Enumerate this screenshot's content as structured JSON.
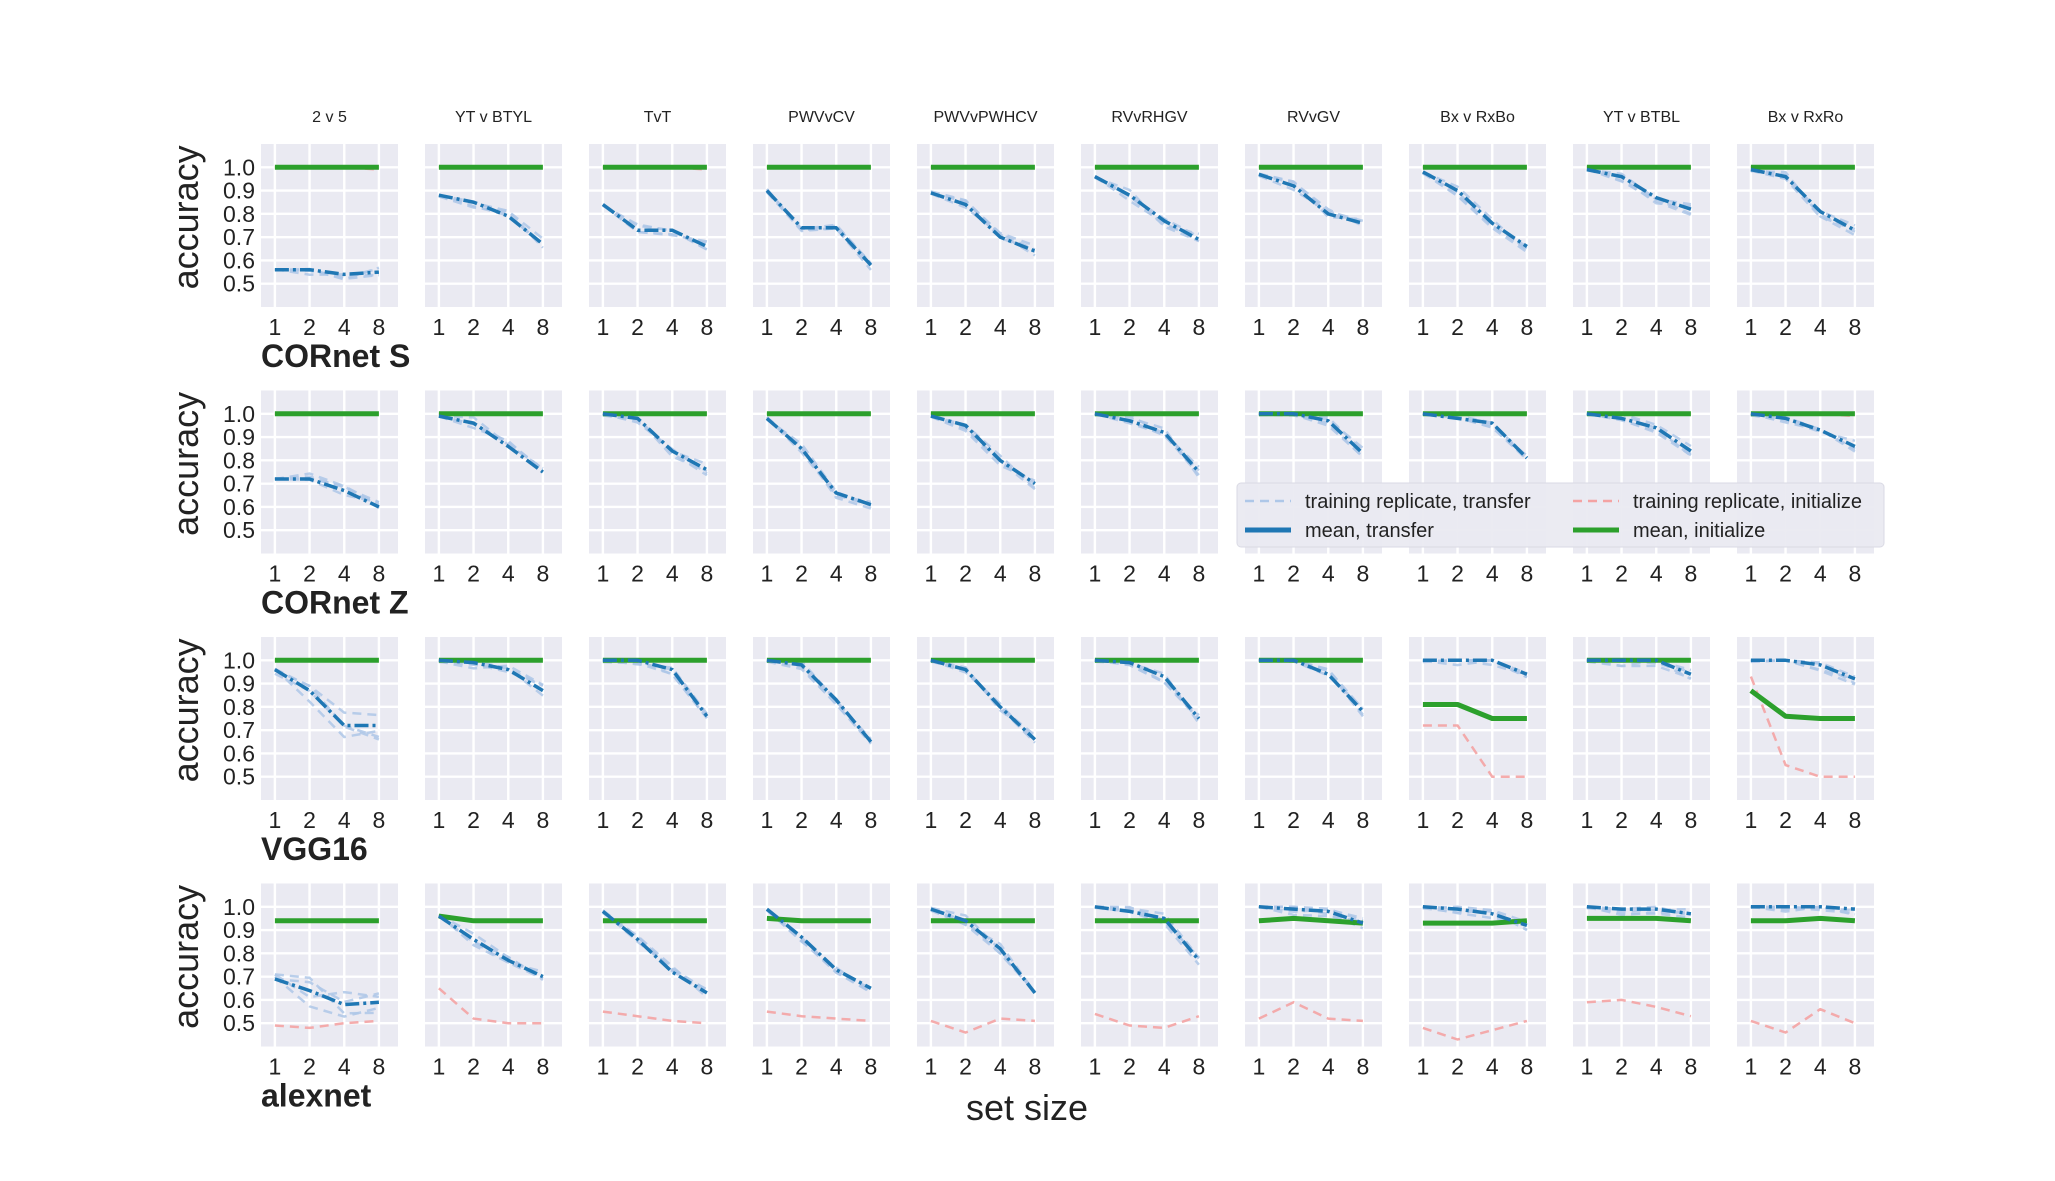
{
  "figure": {
    "xlabel": "set size",
    "ylabel": "accuracy"
  },
  "colors": {
    "transfer_mean": "#1f77b4",
    "transfer_replicate": "#aec7e8",
    "initialize_mean": "#2ca02c",
    "initialize_replicate": "#f4a3a3",
    "panel_background": "#eaeaf2",
    "grid": "#ffffff"
  },
  "legend": {
    "placement": "right, between row 2 and row 3",
    "items": [
      {
        "label": "training replicate, transfer",
        "style": "dashed",
        "series": "transfer_replicate"
      },
      {
        "label": "mean, transfer",
        "style": "solid",
        "series": "transfer_mean"
      },
      {
        "label": "training replicate, initialize",
        "style": "dashed",
        "series": "initialize_replicate"
      },
      {
        "label": "mean, initialize",
        "style": "solid",
        "series": "initialize_mean"
      }
    ]
  },
  "chart_data": {
    "type": "line",
    "x": [
      1,
      2,
      4,
      8
    ],
    "x_ticks": [
      "1",
      "2",
      "4",
      "8"
    ],
    "x_scale": "log2",
    "ylim": [
      0.4,
      1.1
    ],
    "y_ticks": [
      "0.5",
      "0.6",
      "0.7",
      "0.8",
      "0.9",
      "1.0"
    ],
    "grid": true,
    "columns": [
      "2 v 5",
      "YT v BTYL",
      "TvT",
      "PWVvCV",
      "PWVvPWHCV",
      "RVvRHGV",
      "RVvGV",
      "Bx v RxBo",
      "YT v BTBL",
      "Bx v RxRo"
    ],
    "rows": [
      {
        "name": "CORnet S",
        "transfer_mean": [
          [
            0.56,
            0.56,
            0.54,
            0.55
          ],
          [
            0.88,
            0.85,
            0.79,
            0.67
          ],
          [
            0.84,
            0.73,
            0.73,
            0.66
          ],
          [
            0.9,
            0.74,
            0.74,
            0.58
          ],
          [
            0.89,
            0.84,
            0.7,
            0.64
          ],
          [
            0.96,
            0.88,
            0.77,
            0.69
          ],
          [
            0.97,
            0.92,
            0.8,
            0.76
          ],
          [
            0.98,
            0.9,
            0.76,
            0.66
          ],
          [
            0.99,
            0.96,
            0.87,
            0.82
          ],
          [
            0.99,
            0.96,
            0.81,
            0.73
          ]
        ],
        "initialize_mean": [
          [
            1.0,
            1.0,
            1.0,
            1.0
          ],
          [
            1.0,
            1.0,
            1.0,
            1.0
          ],
          [
            1.0,
            1.0,
            1.0,
            1.0
          ],
          [
            1.0,
            1.0,
            1.0,
            1.0
          ],
          [
            1.0,
            1.0,
            1.0,
            1.0
          ],
          [
            1.0,
            1.0,
            1.0,
            1.0
          ],
          [
            1.0,
            1.0,
            1.0,
            1.0
          ],
          [
            1.0,
            1.0,
            1.0,
            1.0
          ],
          [
            1.0,
            1.0,
            1.0,
            1.0
          ],
          [
            1.0,
            1.0,
            1.0,
            1.0
          ]
        ],
        "initialize_replicate": [
          [
            1.0,
            1.0,
            1.0,
            0.99
          ],
          [
            1.0,
            1.0,
            1.0,
            1.0
          ],
          [
            1.0,
            1.0,
            1.0,
            0.99
          ],
          [
            1.0,
            1.0,
            1.0,
            1.0
          ],
          [
            1.0,
            1.0,
            1.0,
            1.0
          ],
          [
            1.0,
            1.0,
            1.0,
            1.0
          ],
          [
            1.0,
            1.0,
            1.0,
            1.0
          ],
          [
            1.0,
            1.0,
            1.0,
            1.0
          ],
          [
            1.0,
            1.0,
            1.0,
            1.0
          ],
          [
            1.0,
            1.0,
            1.0,
            1.0
          ]
        ]
      },
      {
        "name": "CORnet Z",
        "transfer_mean": [
          [
            0.72,
            0.72,
            0.67,
            0.6
          ],
          [
            0.99,
            0.96,
            0.86,
            0.75
          ],
          [
            1.0,
            0.98,
            0.84,
            0.76
          ],
          [
            0.98,
            0.85,
            0.66,
            0.61
          ],
          [
            0.99,
            0.95,
            0.8,
            0.7
          ],
          [
            1.0,
            0.97,
            0.92,
            0.75
          ],
          [
            1.0,
            1.0,
            0.97,
            0.83
          ],
          [
            1.0,
            0.98,
            0.96,
            0.81
          ],
          [
            1.0,
            0.98,
            0.94,
            0.84
          ],
          [
            1.0,
            0.98,
            0.93,
            0.86
          ]
        ],
        "initialize_mean": [
          [
            1.0,
            1.0,
            1.0,
            1.0
          ],
          [
            1.0,
            1.0,
            1.0,
            1.0
          ],
          [
            1.0,
            1.0,
            1.0,
            1.0
          ],
          [
            1.0,
            1.0,
            1.0,
            1.0
          ],
          [
            1.0,
            1.0,
            1.0,
            1.0
          ],
          [
            1.0,
            1.0,
            1.0,
            1.0
          ],
          [
            1.0,
            1.0,
            1.0,
            1.0
          ],
          [
            1.0,
            1.0,
            1.0,
            1.0
          ],
          [
            1.0,
            1.0,
            1.0,
            1.0
          ],
          [
            1.0,
            1.0,
            1.0,
            1.0
          ]
        ],
        "initialize_replicate": [
          [
            1.0,
            1.0,
            1.0,
            1.0
          ],
          [
            1.0,
            1.0,
            1.0,
            1.0
          ],
          [
            1.0,
            1.0,
            1.0,
            1.0
          ],
          [
            1.0,
            1.0,
            1.0,
            1.0
          ],
          [
            1.0,
            1.0,
            1.0,
            1.0
          ],
          [
            1.0,
            1.0,
            1.0,
            1.0
          ],
          [
            1.0,
            1.0,
            1.0,
            1.0
          ],
          [
            1.0,
            1.0,
            1.0,
            1.0
          ],
          [
            1.0,
            1.0,
            1.0,
            1.0
          ],
          [
            1.0,
            1.0,
            1.0,
            0.99
          ]
        ]
      },
      {
        "name": "VGG16",
        "transfer_mean": [
          [
            0.96,
            0.87,
            0.72,
            0.72
          ],
          [
            1.0,
            0.99,
            0.96,
            0.87
          ],
          [
            1.0,
            1.0,
            0.96,
            0.76
          ],
          [
            1.0,
            0.98,
            0.83,
            0.65
          ],
          [
            1.0,
            0.96,
            0.8,
            0.66
          ],
          [
            1.0,
            0.99,
            0.93,
            0.75
          ],
          [
            1.0,
            1.0,
            0.94,
            0.78
          ],
          [
            1.0,
            1.0,
            1.0,
            0.94
          ],
          [
            1.0,
            1.0,
            1.0,
            0.94
          ],
          [
            1.0,
            1.0,
            0.98,
            0.92
          ]
        ],
        "initialize_mean": [
          [
            1.0,
            1.0,
            1.0,
            1.0
          ],
          [
            1.0,
            1.0,
            1.0,
            1.0
          ],
          [
            1.0,
            1.0,
            1.0,
            1.0
          ],
          [
            1.0,
            1.0,
            1.0,
            1.0
          ],
          [
            1.0,
            1.0,
            1.0,
            1.0
          ],
          [
            1.0,
            1.0,
            1.0,
            1.0
          ],
          [
            1.0,
            1.0,
            1.0,
            1.0
          ],
          [
            0.81,
            0.81,
            0.75,
            0.75
          ],
          [
            1.0,
            1.0,
            1.0,
            1.0
          ],
          [
            0.87,
            0.76,
            0.75,
            0.75
          ]
        ],
        "initialize_replicate": [
          [
            1.0,
            1.0,
            1.0,
            1.0
          ],
          [
            1.0,
            1.0,
            1.0,
            1.0
          ],
          [
            1.0,
            1.0,
            1.0,
            1.0
          ],
          [
            1.0,
            1.0,
            1.0,
            1.0
          ],
          [
            1.0,
            1.0,
            1.0,
            1.0
          ],
          [
            1.0,
            1.0,
            1.0,
            1.0
          ],
          [
            1.0,
            1.0,
            1.0,
            1.0
          ],
          [
            0.72,
            0.72,
            0.5,
            0.5
          ],
          [
            1.0,
            1.0,
            1.0,
            1.0
          ],
          [
            0.93,
            0.55,
            0.5,
            0.5
          ]
        ]
      },
      {
        "name": "alexnet",
        "transfer_mean": [
          [
            0.69,
            0.64,
            0.58,
            0.59
          ],
          [
            0.96,
            0.86,
            0.77,
            0.7
          ],
          [
            0.98,
            0.86,
            0.72,
            0.63
          ],
          [
            0.99,
            0.87,
            0.73,
            0.65
          ],
          [
            0.99,
            0.94,
            0.82,
            0.63
          ],
          [
            1.0,
            0.98,
            0.95,
            0.77
          ],
          [
            1.0,
            0.99,
            0.98,
            0.93
          ],
          [
            1.0,
            0.99,
            0.97,
            0.92
          ],
          [
            1.0,
            0.99,
            0.99,
            0.97
          ],
          [
            1.0,
            1.0,
            1.0,
            0.99
          ]
        ],
        "initialize_mean": [
          [
            0.94,
            0.94,
            0.94,
            0.94
          ],
          [
            0.96,
            0.94,
            0.94,
            0.94
          ],
          [
            0.94,
            0.94,
            0.94,
            0.94
          ],
          [
            0.95,
            0.94,
            0.94,
            0.94
          ],
          [
            0.94,
            0.94,
            0.94,
            0.94
          ],
          [
            0.94,
            0.94,
            0.94,
            0.94
          ],
          [
            0.94,
            0.95,
            0.94,
            0.93
          ],
          [
            0.93,
            0.93,
            0.93,
            0.94
          ],
          [
            0.95,
            0.95,
            0.95,
            0.94
          ],
          [
            0.94,
            0.94,
            0.95,
            0.94
          ]
        ],
        "initialize_replicate": [
          [
            0.49,
            0.48,
            0.5,
            0.51
          ],
          [
            0.65,
            0.52,
            0.5,
            0.5
          ],
          [
            0.55,
            0.53,
            0.51,
            0.5
          ],
          [
            0.55,
            0.53,
            0.52,
            0.51
          ],
          [
            0.51,
            0.46,
            0.52,
            0.51
          ],
          [
            0.54,
            0.49,
            0.48,
            0.53
          ],
          [
            0.52,
            0.59,
            0.52,
            0.51
          ],
          [
            0.48,
            0.43,
            0.47,
            0.51
          ],
          [
            0.59,
            0.6,
            0.57,
            0.53
          ],
          [
            0.51,
            0.46,
            0.56,
            0.5
          ]
        ]
      }
    ]
  }
}
